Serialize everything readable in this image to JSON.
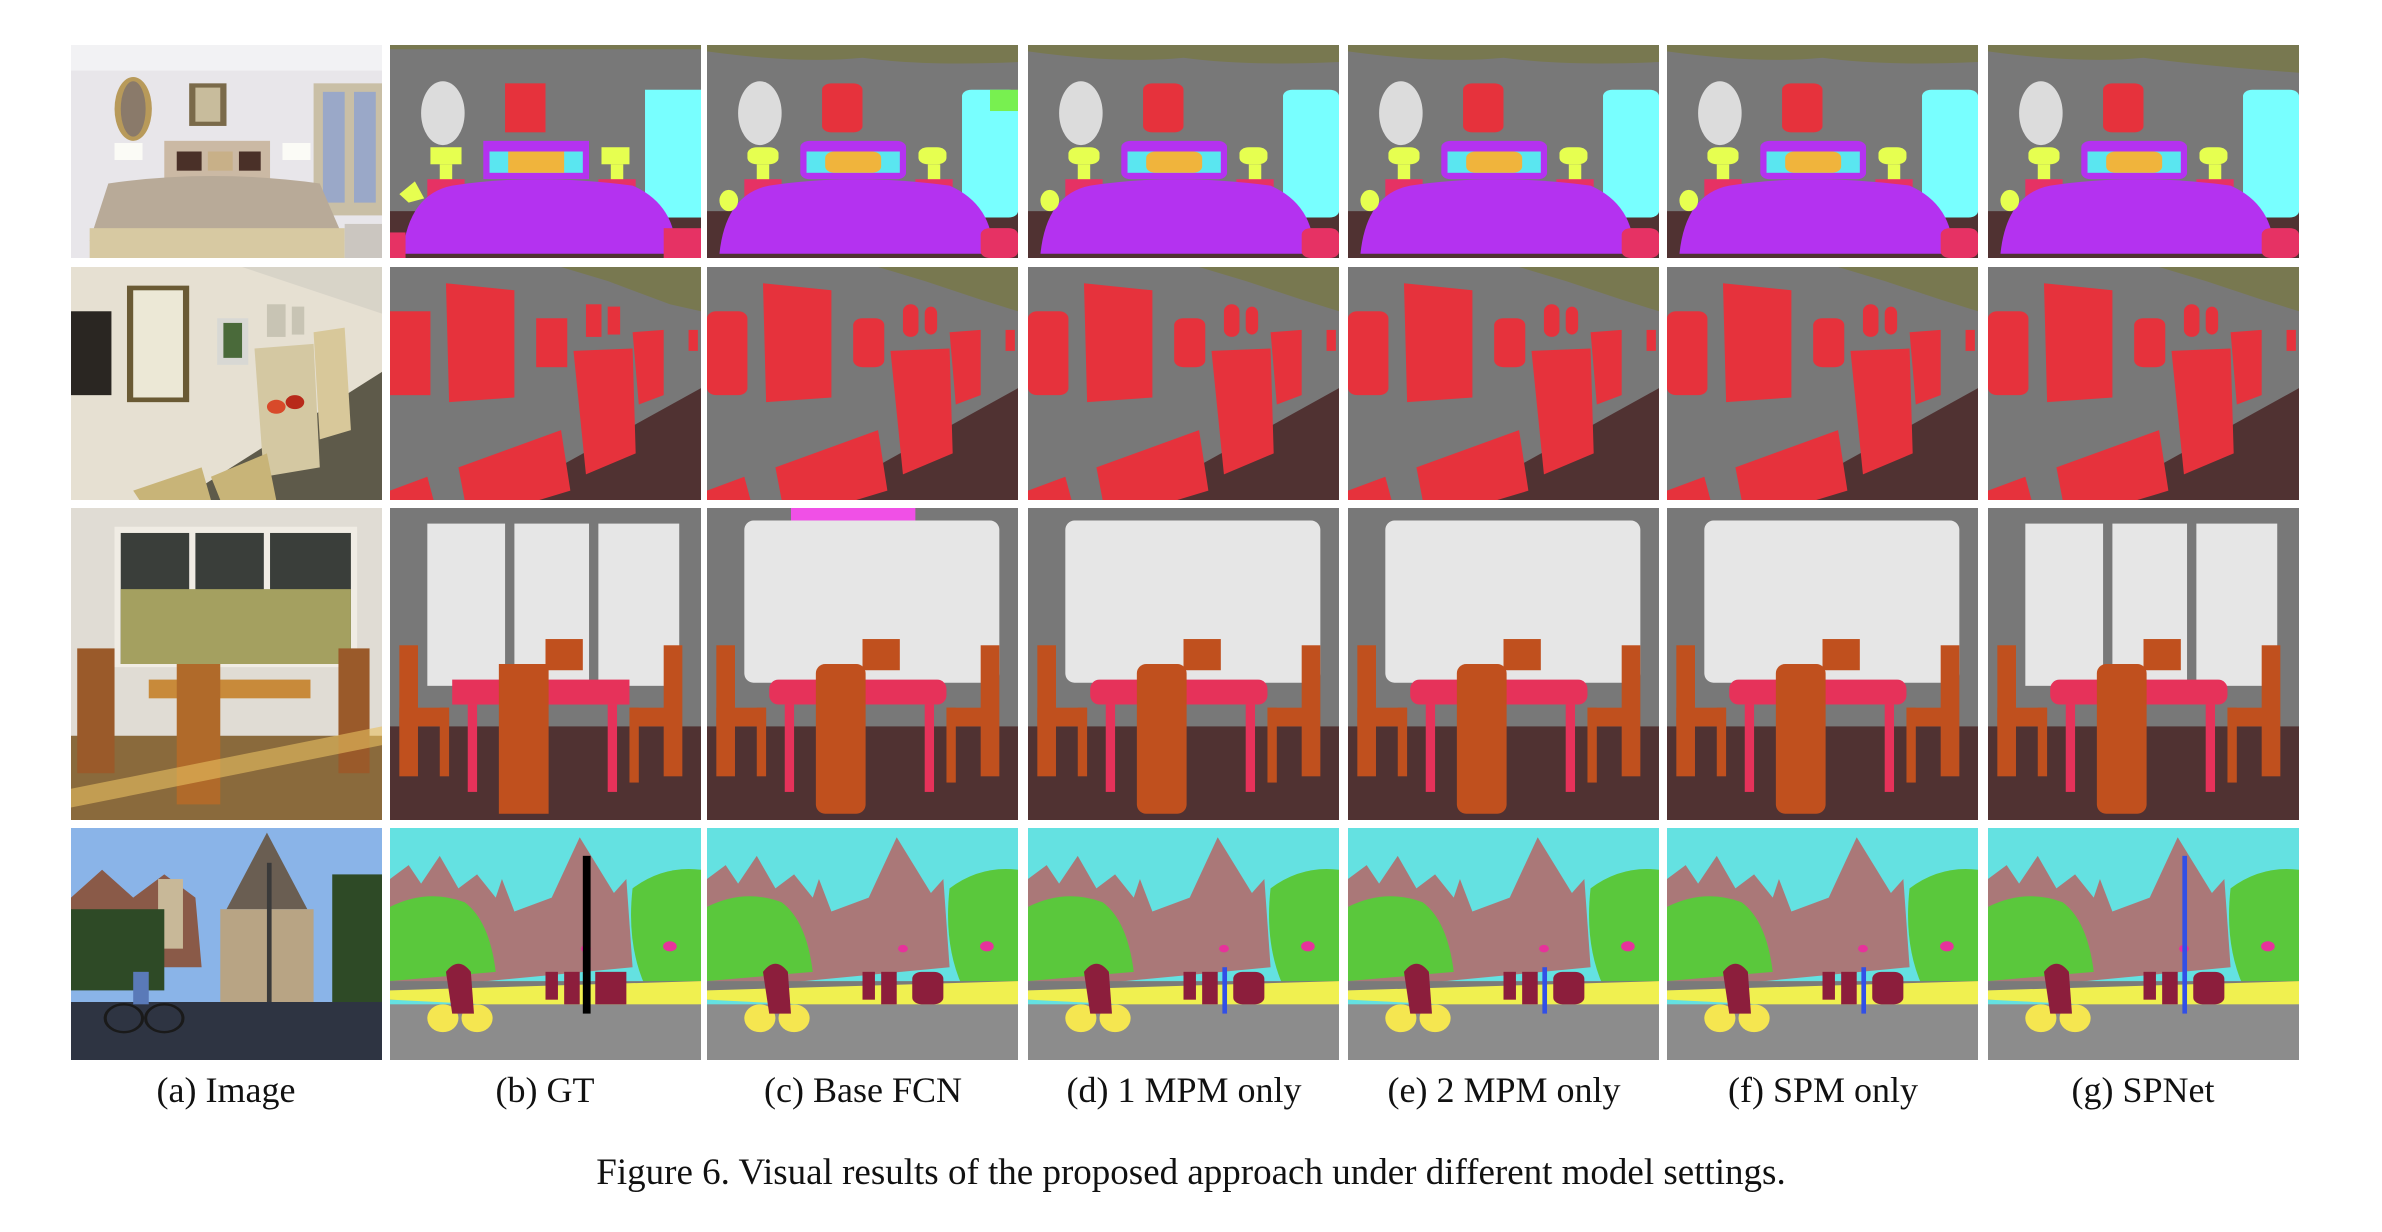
{
  "figure": {
    "caption": "Figure 6. Visual results of the proposed approach under different model settings.",
    "columns": [
      {
        "id": "a",
        "label": "(a) Image"
      },
      {
        "id": "b",
        "label": "(b) GT"
      },
      {
        "id": "c",
        "label": "(c) Base FCN"
      },
      {
        "id": "d",
        "label": "(d) 1 MPM only"
      },
      {
        "id": "e",
        "label": "(e) 2 MPM only"
      },
      {
        "id": "f",
        "label": "(f) SPM only"
      },
      {
        "id": "g",
        "label": "(g) SPNet"
      }
    ],
    "rows": [
      {
        "scene": "bedroom"
      },
      {
        "scene": "gallery-hallway"
      },
      {
        "scene": "dining-room"
      },
      {
        "scene": "street-church"
      }
    ],
    "palette": {
      "wall": "#787878",
      "ceiling": "#787850",
      "floor": "#503232",
      "painting": "#e6323c",
      "bed": "#b432f0",
      "pillow": "#f0b43c",
      "pillow2": "#5ae6f0",
      "wardrobe": "#78ffff",
      "mirror": "#dcdcdc",
      "lamp": "#e6ff50",
      "cabinet": "#e63264",
      "window": "#e6e6e6",
      "chair": "#c0501e",
      "table": "#e6325a",
      "sky": "#64e1e1",
      "building": "#aa7878",
      "tree": "#5ac83c",
      "road": "#8c8c8c",
      "sidewalk": "#f0f050",
      "person": "#8c1e3c",
      "bicycle": "#f5e650",
      "pole": "#3250e6",
      "sign": "#e6329b"
    }
  }
}
